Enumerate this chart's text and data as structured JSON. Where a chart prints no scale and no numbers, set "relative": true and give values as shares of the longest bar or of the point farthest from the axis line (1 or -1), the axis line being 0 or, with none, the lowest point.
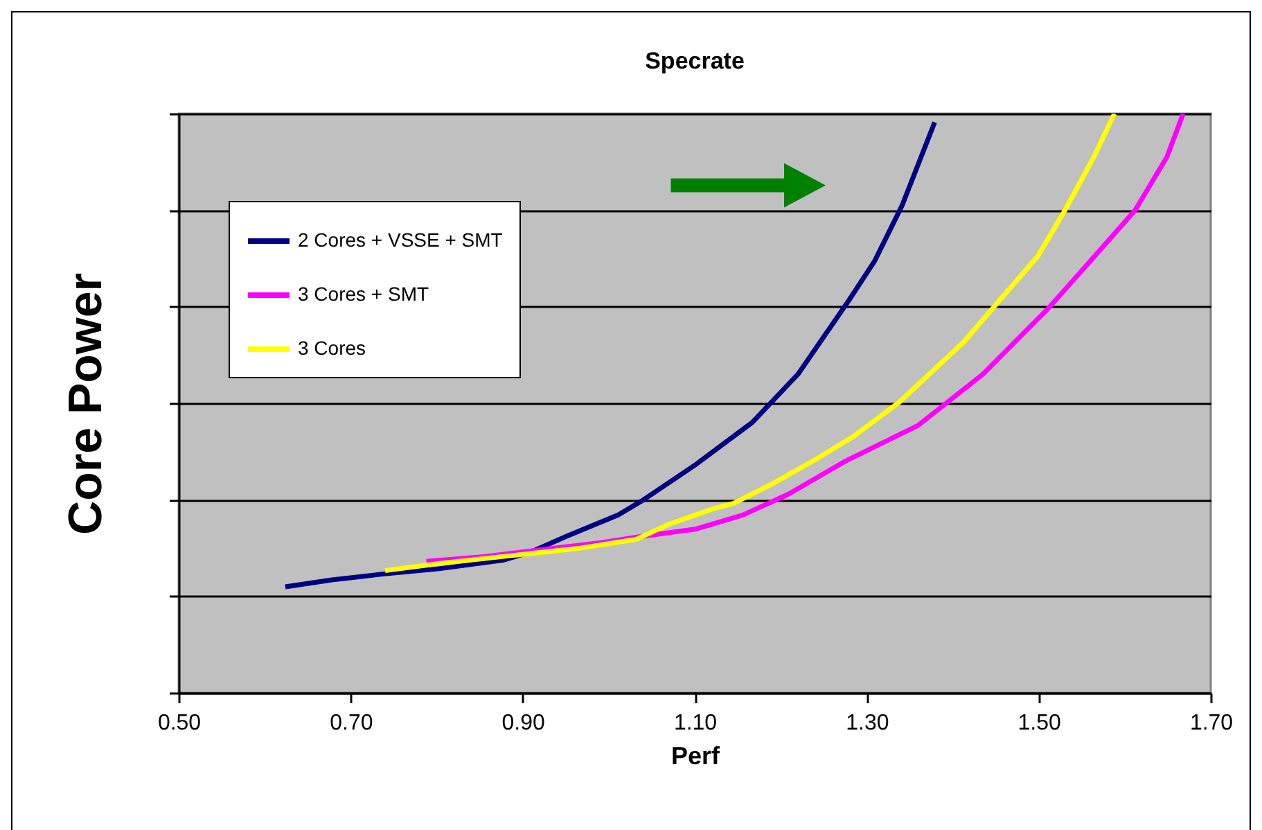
{
  "chart_data": {
    "type": "line",
    "title": "Specrate",
    "xlabel": "Perf",
    "ylabel": "Core Power",
    "relative": true,
    "xlim": [
      0.5,
      1.7
    ],
    "xticks": [
      {
        "value": 0.5,
        "label": "0.50"
      },
      {
        "value": 0.7,
        "label": "0.70"
      },
      {
        "value": 0.9,
        "label": "0.90"
      },
      {
        "value": 1.1,
        "label": "1.10"
      },
      {
        "value": 1.3,
        "label": "1.30"
      },
      {
        "value": 1.5,
        "label": "1.50"
      },
      {
        "value": 1.7,
        "label": "1.70"
      }
    ],
    "tick_labels": "x",
    "grid": "y",
    "legend": "top left",
    "marker": "none",
    "line_style": "solid",
    "series": [
      {
        "name": "2 Cores + VSSE + SMT",
        "color": "#000080",
        "x": [
          0.624,
          0.678,
          0.737,
          0.801,
          0.877,
          0.909,
          0.952,
          1.011,
          1.038,
          1.102,
          1.167,
          1.22,
          1.279,
          1.309,
          1.341,
          1.379
        ],
        "values": [
          0.183,
          0.195,
          0.205,
          0.214,
          0.229,
          0.243,
          0.271,
          0.307,
          0.331,
          0.395,
          0.467,
          0.55,
          0.677,
          0.745,
          0.841,
          0.985
        ]
      },
      {
        "name": "3 Cores + SMT",
        "color": "#ff00ff",
        "x": [
          0.788,
          0.855,
          0.909,
          0.99,
          1.038,
          1.102,
          1.156,
          1.209,
          1.274,
          1.36,
          1.435,
          1.51,
          1.558,
          1.612,
          1.649,
          1.668
        ],
        "values": [
          0.227,
          0.235,
          0.245,
          0.259,
          0.27,
          0.283,
          0.307,
          0.343,
          0.399,
          0.462,
          0.55,
          0.662,
          0.742,
          0.833,
          0.925,
          1.0
        ]
      },
      {
        "name": "3 Cores",
        "color": "#ffff00",
        "x": [
          0.74,
          0.802,
          0.887,
          0.963,
          1.032,
          1.07,
          1.124,
          1.145,
          1.188,
          1.236,
          1.284,
          1.338,
          1.413,
          1.457,
          1.499,
          1.532,
          1.564,
          1.588
        ],
        "values": [
          0.211,
          0.223,
          0.237,
          0.249,
          0.265,
          0.291,
          0.319,
          0.327,
          0.359,
          0.399,
          0.442,
          0.502,
          0.606,
          0.682,
          0.754,
          0.837,
          0.925,
          1.0
        ]
      }
    ]
  }
}
